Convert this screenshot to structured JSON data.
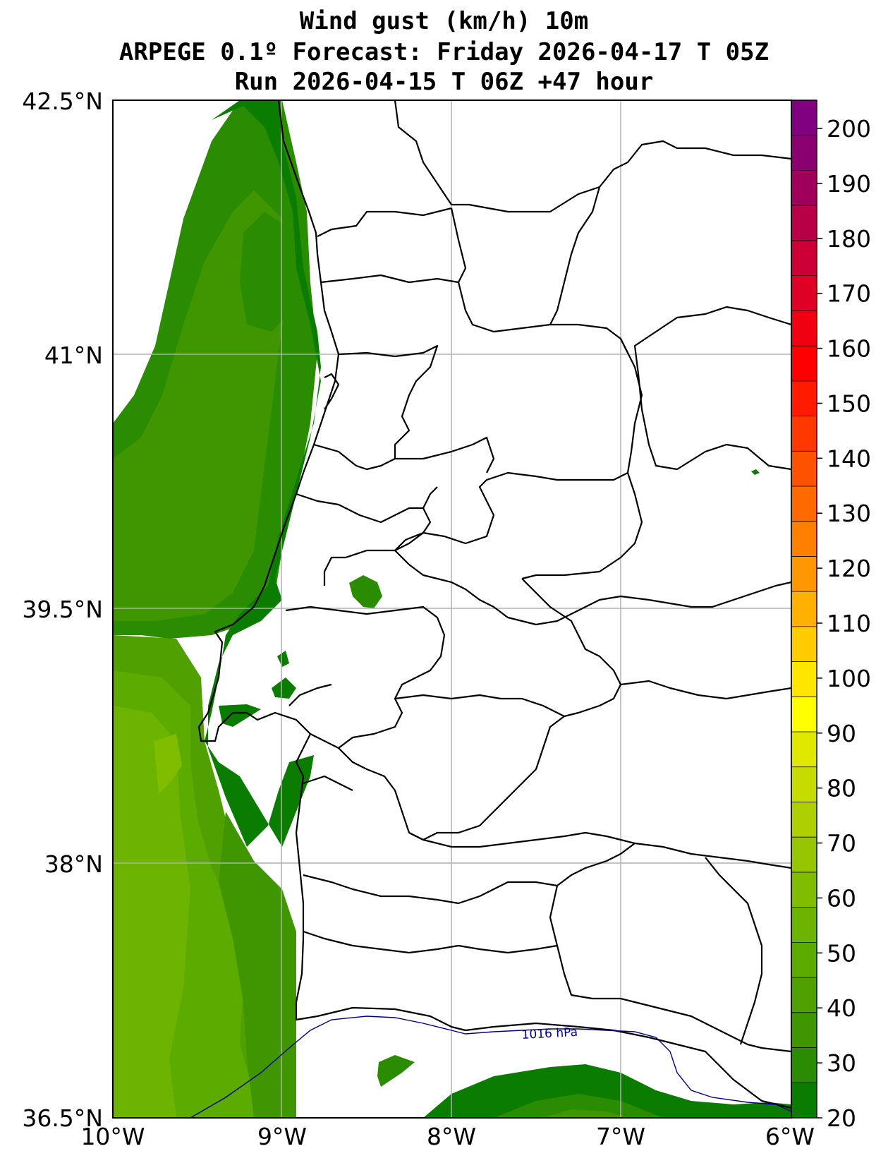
{
  "title": {
    "line1": "Wind gust (km/h) 10m",
    "line2": "ARPEGE 0.1º Forecast: Friday 2026-04-17 T 05Z",
    "line3": "Run 2026-04-15 T 06Z +47 hour"
  },
  "map": {
    "lat_labels": [
      "42.5°N",
      "41°N",
      "39.5°N",
      "38°N",
      "36.5°N"
    ],
    "lon_labels": [
      "10°W",
      "9°W",
      "8°W",
      "7°W",
      "6°W"
    ],
    "isobar_label": "1016 hPa"
  },
  "colorbar": {
    "labels": [
      "200",
      "190",
      "180",
      "170",
      "160",
      "150",
      "140",
      "130",
      "120",
      "110",
      "100",
      "90",
      "80",
      "70",
      "60",
      "50",
      "40",
      "30",
      "20"
    ],
    "colors": [
      "#0a7d00",
      "#2a8c00",
      "#3f9600",
      "#4fa000",
      "#5cab00",
      "#6db400",
      "#80bd00",
      "#96c600",
      "#aed000",
      "#c6dc00",
      "#e0e800",
      "#ffff00",
      "#ffe600",
      "#ffcc00",
      "#ffb000",
      "#ff9800",
      "#ff8000",
      "#ff6a00",
      "#ff5200",
      "#ff3800",
      "#ff1a00",
      "#ff0000",
      "#f00010",
      "#e00025",
      "#cc0035",
      "#b80048",
      "#a0005c",
      "#8a0070",
      "#800080"
    ]
  }
}
